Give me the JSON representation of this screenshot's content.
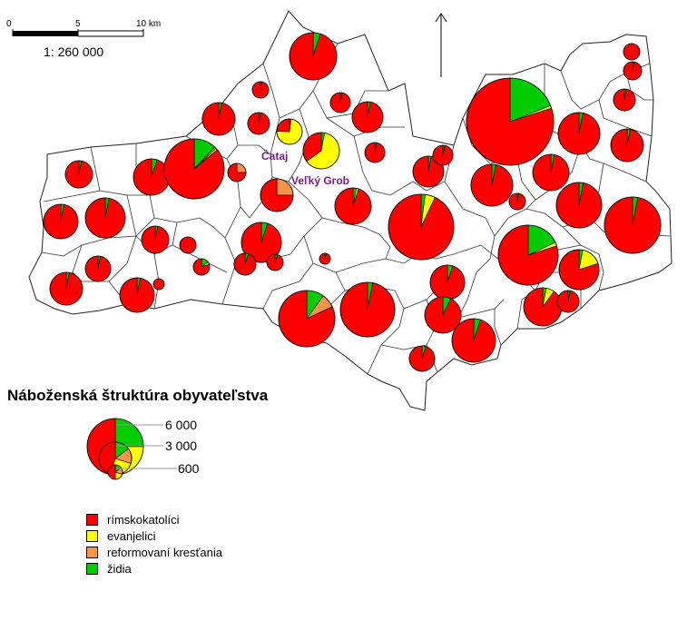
{
  "scale_bar": {
    "ticks": [
      "0",
      "5",
      "10 km"
    ],
    "ratio": "1: 260 000"
  },
  "place_labels": [
    "Čataj",
    "Veľký Grob"
  ],
  "title": "Náboženská štruktúra obyvateľstva",
  "size_legend": [
    "6 000",
    "3 000",
    "600"
  ],
  "categories": [
    {
      "label": "rímskokatolíci",
      "color": "#ff0000"
    },
    {
      "label": "evanjelici",
      "color": "#ffff00"
    },
    {
      "label": "reformovaní kresťania",
      "color": "#f7944a"
    },
    {
      "label": "židia",
      "color": "#00cc00"
    }
  ],
  "chart_data": {
    "type": "pie",
    "title": "Náboženská štruktúra obyvateľstva",
    "size_legend_values": [
      6000,
      3000,
      600
    ],
    "note": "proportional pie symbols per municipality; shares estimated from the picture",
    "series": [
      {
        "label": "Čataj",
        "shares": {
          "rk": 0.25,
          "ev": 0.75,
          "ref": 0,
          "zid": 0.02
        }
      },
      {
        "label": "Veľký Grob",
        "shares": {
          "rk": 0.35,
          "ev": 0.62,
          "ref": 0,
          "zid": 0.03
        }
      }
    ]
  }
}
